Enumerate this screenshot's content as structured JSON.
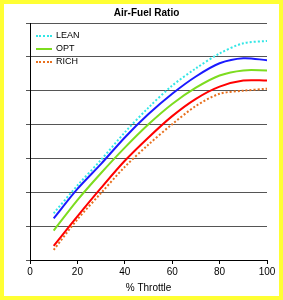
{
  "chart_data": {
    "type": "line",
    "title": "Air-Fuel Ratio",
    "x_label": "% Throttle",
    "x": [
      10,
      20,
      30,
      40,
      50,
      60,
      70,
      80,
      90,
      100
    ],
    "series": [
      {
        "name": "LEAN",
        "color": "#33e6e6",
        "line_style": "dotted",
        "values": [
          1.38,
          2.2,
          2.96,
          3.77,
          4.5,
          5.15,
          5.66,
          6.1,
          6.4,
          6.47
        ]
      },
      {
        "color": "#1a1aff",
        "line_style": "solid",
        "values": [
          1.23,
          2.1,
          2.84,
          3.62,
          4.31,
          4.91,
          5.42,
          5.81,
          5.96,
          5.9
        ]
      },
      {
        "name": "OPT",
        "color": "#7ddc1f",
        "line_style": "solid",
        "values": [
          0.87,
          1.77,
          2.57,
          3.32,
          4.01,
          4.61,
          5.09,
          5.45,
          5.6,
          5.6
        ]
      },
      {
        "color": "#ff0000",
        "line_style": "solid",
        "values": [
          0.42,
          1.29,
          2.13,
          2.93,
          3.62,
          4.25,
          4.76,
          5.12,
          5.3,
          5.3
        ]
      },
      {
        "name": "RICH",
        "color": "#e8701e",
        "line_style": "dotted",
        "values": [
          0.3,
          1.2,
          1.98,
          2.75,
          3.41,
          4.01,
          4.55,
          4.91,
          5.0,
          5.06
        ]
      }
    ],
    "xlim": [
      0,
      100
    ],
    "xticks": [
      0,
      20,
      40,
      60,
      80,
      100
    ],
    "ylim": [
      0,
      7
    ],
    "yticks": [
      0,
      1,
      2,
      3,
      4,
      5,
      6,
      7
    ],
    "grid": true,
    "tick_labels": "x",
    "legend": "top-left",
    "marker": "none"
  }
}
